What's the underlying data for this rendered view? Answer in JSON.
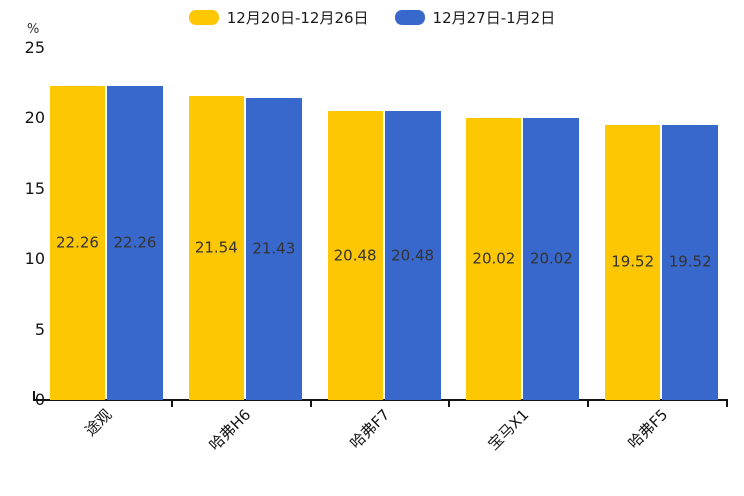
{
  "chart_data": {
    "type": "bar",
    "title": "",
    "unit_label": "%",
    "categories": [
      "途观",
      "哈弗H6",
      "哈弗F7",
      "宝马X1",
      "哈弗F5"
    ],
    "series": [
      {
        "name": "12月20日-12月26日",
        "color": "#FDC703",
        "values": [
          22.26,
          21.54,
          20.48,
          20.02,
          19.52
        ]
      },
      {
        "name": "12月27日-1月2日",
        "color": "#3968CD",
        "values": [
          22.26,
          21.43,
          20.48,
          20.02,
          19.52
        ]
      }
    ],
    "ylim": [
      0,
      25
    ],
    "yticks": [
      0,
      5,
      10,
      15,
      20,
      25
    ],
    "grid": false,
    "legend_position": "top",
    "value_labels": "inside-middle",
    "xlabel": "",
    "ylabel": "%",
    "axis_color": "#141414",
    "value_label_color": "#333333"
  }
}
